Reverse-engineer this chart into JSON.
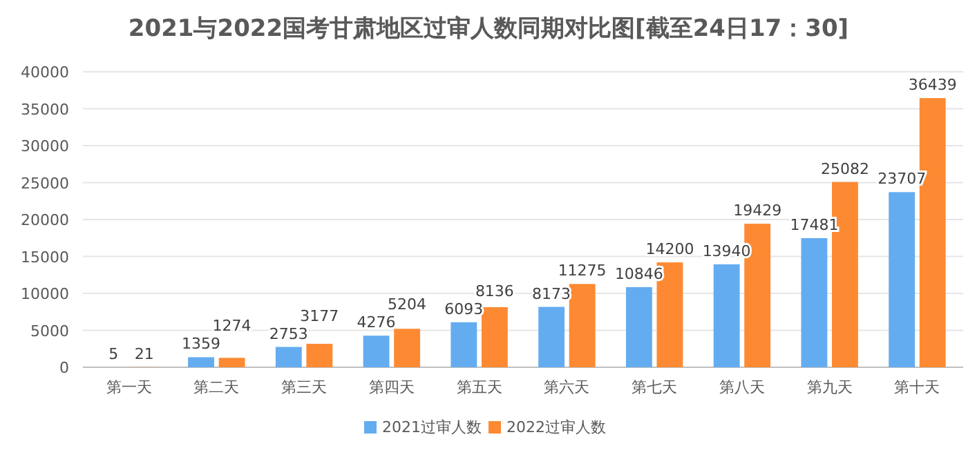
{
  "chart_data": {
    "type": "bar",
    "title": "2021与2022国考甘肃地区过审人数同期对比图[截至24日17：30]",
    "categories": [
      "第一天",
      "第二天",
      "第三天",
      "第四天",
      "第五天",
      "第六天",
      "第七天",
      "第八天",
      "第九天",
      "第十天"
    ],
    "series": [
      {
        "name": "2021过审人数",
        "color": "#64acf0",
        "values": [
          5,
          1359,
          2753,
          4276,
          6093,
          8173,
          10846,
          13940,
          17481,
          23707
        ]
      },
      {
        "name": "2022过审人数",
        "color": "#fd8a32",
        "values": [
          21,
          1274,
          3177,
          5204,
          8136,
          11275,
          14200,
          19429,
          25082,
          36439
        ]
      }
    ],
    "ylim": [
      0,
      40000
    ],
    "yticks": [
      0,
      5000,
      10000,
      15000,
      20000,
      25000,
      30000,
      35000,
      40000
    ],
    "grid": "y",
    "legend": "bottom",
    "data_labels": true
  }
}
